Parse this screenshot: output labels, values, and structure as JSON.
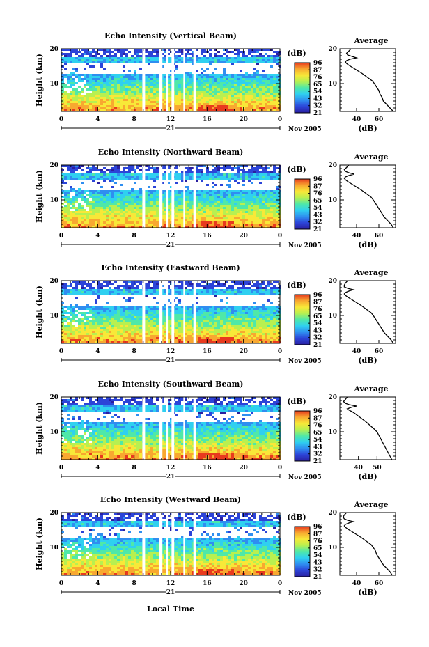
{
  "figure": {
    "xlabel": "Local Time",
    "colorbar_ticks": [
      "96",
      "87",
      "76",
      "65",
      "54",
      "43",
      "32",
      "21"
    ],
    "colorbar_unit": "(dB)",
    "colormap": [
      "#2a1fa0",
      "#2c44d8",
      "#2f8ef0",
      "#2fd0f0",
      "#4fe8a8",
      "#b8f050",
      "#f8e838",
      "#f8a830",
      "#e83a1e"
    ]
  },
  "chart_data": [
    {
      "type": "heatmap",
      "title": "Echo Intensity (Vertical Beam)",
      "ylabel": "Height (km)",
      "x_ticks": [
        "0",
        "4",
        "8",
        "12",
        "16",
        "20",
        "0"
      ],
      "xlim": [
        0,
        24
      ],
      "y_ticks": [
        "10",
        "20"
      ],
      "ylim": [
        2,
        20
      ],
      "date_label": "21",
      "month_label": "Nov 2005",
      "data_gaps_hours": [
        [
          8.9,
          9.2
        ],
        [
          10.7,
          11.1
        ],
        [
          11.5,
          11.7
        ],
        [
          12.1,
          12.4
        ],
        [
          13.4,
          13.6
        ],
        [
          14.5,
          14.8
        ]
      ],
      "profile": {
        "title": "Average",
        "xlabel": "(dB)",
        "x_ticks": [
          "40",
          "60"
        ],
        "xlim": [
          25,
          75
        ],
        "y_ticks": [
          "10",
          "20"
        ],
        "ylim": [
          2,
          20
        ],
        "x": [
          73,
          70,
          67,
          64,
          63,
          61,
          60,
          58,
          56,
          54,
          51,
          48,
          45,
          42,
          39,
          36,
          33,
          31,
          30,
          31,
          34,
          40,
          36,
          32,
          31,
          33,
          35
        ],
        "y": [
          2,
          3,
          4,
          5,
          6,
          7,
          8,
          9,
          10,
          10.8,
          11.5,
          12.2,
          12.9,
          13.5,
          14.1,
          14.7,
          15.3,
          15.8,
          16.2,
          16.6,
          17,
          17.4,
          17.8,
          18.2,
          18.7,
          19.3,
          20
        ]
      }
    },
    {
      "type": "heatmap",
      "title": "Echo Intensity (Northward Beam)",
      "ylabel": "Height (km)",
      "x_ticks": [
        "0",
        "4",
        "8",
        "12",
        "16",
        "20",
        "0"
      ],
      "xlim": [
        0,
        24
      ],
      "y_ticks": [
        "10",
        "20"
      ],
      "ylim": [
        2,
        20
      ],
      "date_label": "21",
      "month_label": "Nov 2005",
      "data_gaps_hours": [
        [
          8.9,
          9.2
        ],
        [
          10.7,
          11.1
        ],
        [
          11.5,
          11.7
        ],
        [
          12.1,
          12.4
        ],
        [
          13.4,
          13.6
        ],
        [
          14.5,
          14.8
        ]
      ],
      "profile": {
        "title": "Average",
        "xlabel": "(dB)",
        "x_ticks": [
          "40",
          "60"
        ],
        "xlim": [
          25,
          75
        ],
        "y_ticks": [
          "10",
          "20"
        ],
        "ylim": [
          2,
          20
        ],
        "x": [
          73,
          71,
          68,
          65,
          63,
          61,
          59,
          57,
          55,
          53,
          50,
          47,
          44,
          41,
          38,
          35,
          32,
          30,
          29,
          30,
          33,
          38,
          33,
          30,
          29,
          31,
          33
        ],
        "y": [
          2,
          3,
          4,
          5,
          6,
          7,
          8,
          9,
          10,
          10.8,
          11.5,
          12.2,
          12.9,
          13.5,
          14.1,
          14.7,
          15.3,
          15.8,
          16.2,
          16.6,
          17,
          17.4,
          17.8,
          18.2,
          18.7,
          19.3,
          20
        ]
      }
    },
    {
      "type": "heatmap",
      "title": "Echo Intensity (Eastward Beam)",
      "ylabel": "Height (km)",
      "x_ticks": [
        "0",
        "4",
        "8",
        "12",
        "16",
        "20",
        "0"
      ],
      "xlim": [
        0,
        24
      ],
      "y_ticks": [
        "10",
        "20"
      ],
      "ylim": [
        2,
        20
      ],
      "date_label": "21",
      "month_label": "Nov 2005",
      "data_gaps_hours": [
        [
          8.9,
          9.2
        ],
        [
          10.7,
          11.1
        ],
        [
          11.5,
          11.7
        ],
        [
          12.1,
          12.4
        ],
        [
          13.4,
          13.6
        ],
        [
          14.5,
          14.8
        ]
      ],
      "profile": {
        "title": "Average",
        "xlabel": "(dB)",
        "x_ticks": [
          "40",
          "60"
        ],
        "xlim": [
          25,
          75
        ],
        "y_ticks": [
          "10",
          "20"
        ],
        "ylim": [
          2,
          20
        ],
        "x": [
          73,
          71,
          68,
          65,
          63,
          61,
          59,
          57,
          55,
          53,
          50,
          47,
          44,
          41,
          38,
          35,
          32,
          30,
          29,
          30,
          33,
          37,
          32,
          29,
          29,
          30,
          32
        ],
        "y": [
          2,
          3,
          4,
          5,
          6,
          7,
          8,
          9,
          10,
          10.8,
          11.5,
          12.2,
          12.9,
          13.5,
          14.1,
          14.7,
          15.3,
          15.8,
          16.2,
          16.6,
          17,
          17.4,
          17.8,
          18.2,
          18.7,
          19.3,
          20
        ]
      }
    },
    {
      "type": "heatmap",
      "title": "Echo Intensity (Southward Beam)",
      "ylabel": "Height (km)",
      "x_ticks": [
        "0",
        "4",
        "8",
        "12",
        "16",
        "20",
        "0"
      ],
      "xlim": [
        0,
        24
      ],
      "y_ticks": [
        "10",
        "20"
      ],
      "ylim": [
        2,
        20
      ],
      "date_label": "21",
      "month_label": "Nov 2005",
      "data_gaps_hours": [
        [
          8.9,
          9.2
        ],
        [
          10.7,
          11.1
        ],
        [
          11.5,
          11.7
        ],
        [
          12.1,
          12.4
        ],
        [
          13.4,
          13.6
        ],
        [
          14.5,
          14.8
        ]
      ],
      "profile": {
        "title": "Average",
        "xlabel": "(dB)",
        "x_ticks": [
          "40",
          "50"
        ],
        "xlim": [
          30,
          60
        ],
        "y_ticks": [
          "10",
          "20"
        ],
        "ylim": [
          2,
          20
        ],
        "x": [
          58,
          57,
          56,
          55,
          54,
          53,
          52,
          51,
          50,
          48.5,
          47,
          45.5,
          44,
          42.5,
          41,
          39.5,
          38,
          36.5,
          35,
          34,
          36,
          39,
          35,
          33,
          32,
          33,
          34
        ],
        "y": [
          2,
          3,
          4,
          5,
          6,
          7,
          8,
          9,
          10,
          10.8,
          11.5,
          12.2,
          12.9,
          13.5,
          14.1,
          14.7,
          15.3,
          15.8,
          16.2,
          16.6,
          17,
          17.4,
          17.8,
          18.2,
          18.7,
          19.3,
          20
        ]
      }
    },
    {
      "type": "heatmap",
      "title": "Echo Intensity (Westward Beam)",
      "ylabel": "Height (km)",
      "x_ticks": [
        "0",
        "4",
        "8",
        "12",
        "16",
        "20",
        "0"
      ],
      "xlim": [
        0,
        24
      ],
      "y_ticks": [
        "10",
        "20"
      ],
      "ylim": [
        2,
        20
      ],
      "date_label": "21",
      "month_label": "Nov 2005",
      "data_gaps_hours": [
        [
          8.9,
          9.2
        ],
        [
          10.7,
          11.1
        ],
        [
          11.5,
          11.7
        ],
        [
          12.1,
          12.4
        ],
        [
          13.4,
          13.6
        ],
        [
          14.5,
          14.8
        ]
      ],
      "profile": {
        "title": "Average",
        "xlabel": "(dB)",
        "x_ticks": [
          "40",
          "60"
        ],
        "xlim": [
          25,
          75
        ],
        "y_ticks": [
          "10",
          "20"
        ],
        "ylim": [
          2,
          20
        ],
        "x": [
          72,
          70,
          67,
          64,
          62,
          60,
          58,
          57,
          55,
          53,
          50,
          47,
          44,
          41,
          38,
          35,
          32,
          30,
          29,
          30,
          33,
          37,
          32,
          29,
          28,
          29,
          31
        ],
        "y": [
          2,
          3,
          4,
          5,
          6,
          7,
          8,
          9,
          10,
          10.8,
          11.5,
          12.2,
          12.9,
          13.5,
          14.1,
          14.7,
          15.3,
          15.8,
          16.2,
          16.6,
          17,
          17.4,
          17.8,
          18.2,
          18.7,
          19.3,
          20
        ]
      }
    }
  ]
}
